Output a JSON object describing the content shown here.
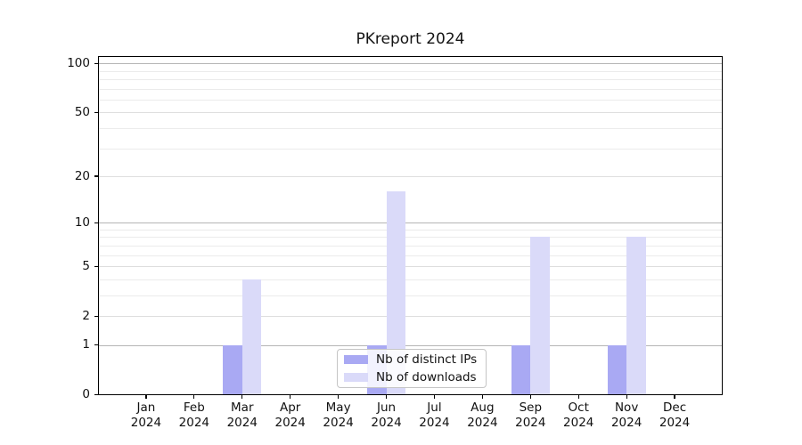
{
  "chart_data": {
    "type": "bar",
    "title": "PKreport 2024",
    "categories": [
      "Jan",
      "Feb",
      "Mar",
      "Apr",
      "May",
      "Jun",
      "Jul",
      "Aug",
      "Sep",
      "Oct",
      "Nov",
      "Dec"
    ],
    "category_year": "2024",
    "series": [
      {
        "name": "Nb of distinct IPs",
        "color": "#a9a9f3",
        "values": [
          0,
          0,
          1,
          0,
          0,
          1,
          0,
          0,
          1,
          0,
          1,
          0
        ]
      },
      {
        "name": "Nb of downloads",
        "color": "#dadaf9",
        "values": [
          0,
          0,
          4,
          0,
          0,
          16,
          0,
          0,
          8,
          0,
          8,
          0
        ]
      }
    ],
    "xlabel": "",
    "ylabel": "",
    "yscale": "log1p",
    "ylim": [
      0,
      111
    ],
    "yticks_labeled": [
      0,
      1,
      2,
      5,
      10,
      20,
      50,
      100
    ],
    "ygrid_decades": [
      1,
      10,
      100
    ],
    "ygrid_minor": [
      3,
      4,
      6,
      7,
      8,
      9,
      30,
      40,
      60,
      70,
      80,
      90
    ],
    "grid": "horizontal major+minor",
    "legend_position": "lower center"
  },
  "colors": {
    "background": "#ffffff",
    "axis_spine": "#000000",
    "tick_text": "#111111",
    "grid_decade": "#b5b5b5",
    "grid_labeled": "#dedede",
    "grid_minor": "#ebebeb",
    "legend_border": "#c5c5c5",
    "legend_background": "rgba(255,255,255,0.85)"
  }
}
